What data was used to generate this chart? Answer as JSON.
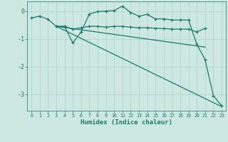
{
  "xlabel": "Humidex (Indice chaleur)",
  "bg_color": "#cce8e0",
  "grid_color": "#aad4cc",
  "line_color": "#1a7a6e",
  "xlim": [
    -0.5,
    23.5
  ],
  "ylim": [
    -3.6,
    0.35
  ],
  "yticks": [
    0,
    -1,
    -2,
    -3
  ],
  "xticks": [
    0,
    1,
    2,
    3,
    4,
    5,
    6,
    7,
    8,
    9,
    10,
    11,
    12,
    13,
    14,
    15,
    16,
    17,
    18,
    19,
    20,
    21,
    22,
    23
  ],
  "line1_x": [
    0,
    1,
    2,
    3,
    4,
    5,
    6,
    7,
    8,
    9,
    10,
    11,
    12,
    13,
    14,
    15,
    16,
    17,
    18,
    19,
    20,
    21,
    22,
    23
  ],
  "line1_y": [
    -0.25,
    -0.18,
    -0.3,
    -0.55,
    -0.55,
    -1.15,
    -0.75,
    -0.1,
    -0.02,
    0.0,
    0.02,
    0.18,
    -0.05,
    -0.18,
    -0.12,
    -0.28,
    -0.28,
    -0.32,
    -0.32,
    -0.32,
    -1.2,
    -1.75,
    -3.05,
    -3.42
  ],
  "line2_x": [
    3,
    4,
    5,
    6,
    7,
    8,
    9,
    10,
    11,
    12,
    13,
    14,
    15,
    16,
    17,
    18,
    19,
    20,
    21
  ],
  "line2_y": [
    -0.55,
    -0.55,
    -0.65,
    -0.6,
    -0.55,
    -0.55,
    -0.58,
    -0.55,
    -0.55,
    -0.58,
    -0.6,
    -0.6,
    -0.62,
    -0.63,
    -0.65,
    -0.65,
    -0.65,
    -0.75,
    -0.62
  ],
  "line3_x": [
    3,
    23
  ],
  "line3_y": [
    -0.55,
    -3.45
  ],
  "line4_x": [
    3,
    21
  ],
  "line4_y": [
    -0.55,
    -1.3
  ]
}
